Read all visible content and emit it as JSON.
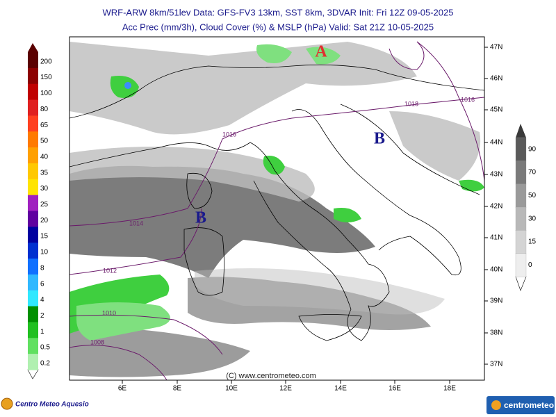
{
  "header": {
    "line1": "WRF-ARW 8km/51lev  Data: GFS-FV3 13km, SST 8km, 3DVAR  Init: Fri 12Z 09-05-2025",
    "line2": "Acc Prec (mm/3h), Cloud Cover (%) & MSLP (hPa)  Valid: Sat 21Z 10-05-2025"
  },
  "precip_scale": {
    "labels": [
      "200",
      "150",
      "100",
      "80",
      "65",
      "50",
      "40",
      "35",
      "30",
      "25",
      "20",
      "15",
      "10",
      "8",
      "6",
      "4",
      "2",
      "1",
      "0.5",
      "0.2"
    ]
  },
  "cloud_scale": {
    "labels": [
      "90",
      "70",
      "50",
      "30",
      "15",
      "0"
    ]
  },
  "map": {
    "lat_labels": [
      "47N",
      "46N",
      "45N",
      "44N",
      "43N",
      "42N",
      "41N",
      "40N",
      "39N",
      "38N",
      "37N"
    ],
    "lon_labels": [
      "6E",
      "8E",
      "10E",
      "12E",
      "14E",
      "16E",
      "18E"
    ],
    "isobars": [
      "1018",
      "1016",
      "1016",
      "1014",
      "1012",
      "1010",
      "1008"
    ],
    "pressure_centers": [
      "A",
      "B",
      "B"
    ],
    "credit": "(C) www.centrometeo.com"
  },
  "footer": {
    "left_logo": "Centro Meteo Aquesio",
    "right_logo": "centrometeo"
  }
}
